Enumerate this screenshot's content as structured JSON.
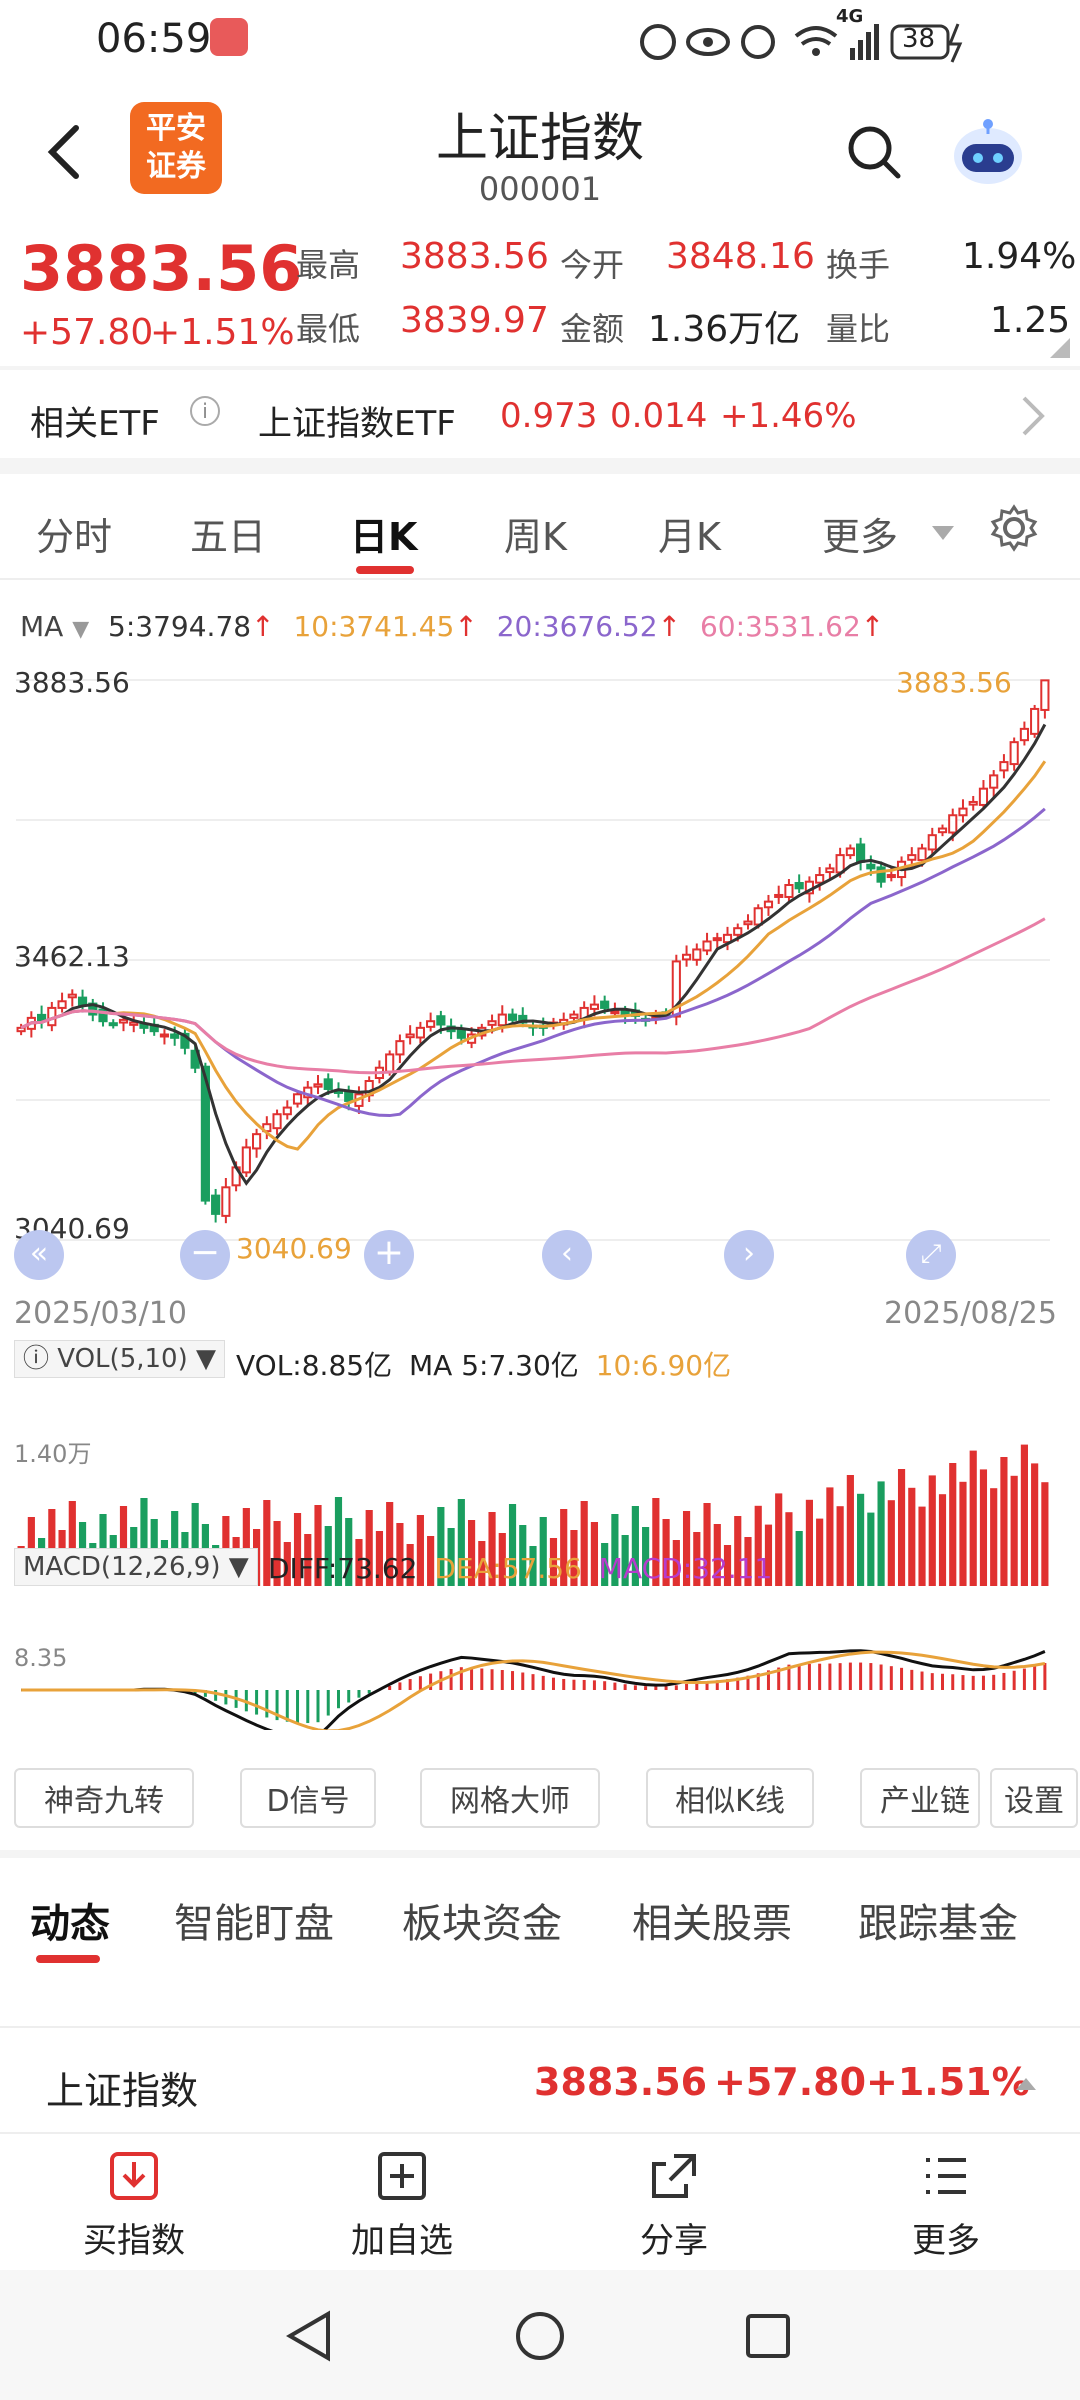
{
  "status": {
    "time": "06:59",
    "battery": "38",
    "net": "4G"
  },
  "header": {
    "title": "上证指数",
    "code": "000001",
    "logo_line1": "平安",
    "logo_line2": "证券"
  },
  "quote": {
    "price": "3883.56",
    "change": "+57.80",
    "change_pct": "+1.51%",
    "high_label": "最高",
    "high": "3883.56",
    "open_label": "今开",
    "open": "3848.16",
    "turnover_label": "换手",
    "turnover": "1.94%",
    "low_label": "最低",
    "low": "3839.97",
    "amount_label": "金额",
    "amount": "1.36万亿",
    "ratio_label": "量比",
    "ratio": "1.25"
  },
  "etf": {
    "label": "相关ETF",
    "name": "上证指数ETF",
    "price": "0.973",
    "change": "0.014",
    "pct": "+1.46%"
  },
  "tabs": [
    "分时",
    "五日",
    "日K",
    "周K",
    "月K",
    "更多"
  ],
  "active_tab": 2,
  "ma": {
    "label": "MA",
    "ma5": "5:3794.78",
    "ma10": "10:3741.45",
    "ma20": "20:3676.52",
    "ma60": "60:3531.62"
  },
  "colors": {
    "up": "#e03130",
    "down": "#1a9e5f",
    "ma5": "#333333",
    "ma10": "#e8a23a",
    "ma20": "#8b66cc",
    "ma60": "#e87ea6",
    "accent": "#e03130"
  },
  "chart_data": {
    "type": "candlestick",
    "y_labels": [
      "3883.56",
      "3462.13",
      "3040.69"
    ],
    "ylim": [
      3040.69,
      3883.56
    ],
    "start_date": "2025/03/10",
    "end_date": "2025/08/25",
    "max_label": "3883.56",
    "min_label": "3040.69",
    "closes": [
      3360,
      3375,
      3370,
      3390,
      3400,
      3410,
      3395,
      3380,
      3370,
      3365,
      3372,
      3368,
      3360,
      3355,
      3350,
      3345,
      3330,
      3300,
      3100,
      3080,
      3120,
      3150,
      3180,
      3200,
      3215,
      3230,
      3240,
      3260,
      3270,
      3275,
      3268,
      3262,
      3250,
      3260,
      3280,
      3300,
      3320,
      3340,
      3350,
      3360,
      3370,
      3365,
      3355,
      3345,
      3350,
      3360,
      3370,
      3380,
      3372,
      3368,
      3362,
      3360,
      3368,
      3372,
      3380,
      3390,
      3395,
      3390,
      3385,
      3380,
      3378,
      3372,
      3376,
      3380,
      3460,
      3470,
      3478,
      3490,
      3495,
      3500,
      3510,
      3520,
      3540,
      3550,
      3560,
      3575,
      3570,
      3580,
      3590,
      3600,
      3620,
      3630,
      3610,
      3600,
      3580,
      3590,
      3610,
      3620,
      3630,
      3650,
      3660,
      3680,
      3690,
      3700,
      3720,
      3740,
      3760,
      3790,
      3810,
      3840,
      3883
    ]
  },
  "vol": {
    "label": "VOL(5,10)",
    "vol": "VOL:8.85亿",
    "ma5": "MA 5:7.30亿",
    "ma10": "10:6.90亿",
    "ylabel": "1.40万"
  },
  "macd": {
    "label": "MACD(12,26,9)",
    "diff": "DIFF:73.62",
    "dea": "DEA:57.56",
    "macd": "MACD:32.11",
    "ylabel": "8.35"
  },
  "chips": [
    "神奇九转",
    "D信号",
    "网格大师",
    "相似K线",
    "产业链",
    "设置"
  ],
  "news_tabs": [
    "动态",
    "智能盯盘",
    "板块资金",
    "相关股票",
    "跟踪基金"
  ],
  "ticker": {
    "name": "上证指数",
    "price": "3883.56",
    "change": "+57.80",
    "pct": "+1.51%"
  },
  "bottom": {
    "buy": "买指数",
    "add": "加自选",
    "share": "分享",
    "more": "更多"
  }
}
